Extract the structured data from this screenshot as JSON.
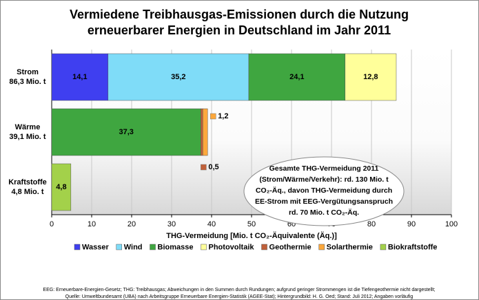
{
  "chart_data": {
    "type": "stacked-bar-horizontal",
    "title_lines": [
      "Vermiedene Treibhausgas-Emissionen durch die Nutzung",
      "erneuerbarer Energien in Deutschland im Jahr 2011"
    ],
    "categories": [
      "Strom",
      "Wärme",
      "Kraftstoffe"
    ],
    "category_sublabels": [
      "86,3 Mio. t",
      "39,1 Mio. t",
      "4,8 Mio. t"
    ],
    "series": [
      {
        "name": "Wasser",
        "color": "#3f3ff0",
        "values": [
          14.1,
          null,
          null
        ],
        "value_labels": [
          "14,1",
          null,
          null
        ]
      },
      {
        "name": "Wind",
        "color": "#7fdcf8",
        "values": [
          35.2,
          null,
          null
        ],
        "value_labels": [
          "35,2",
          null,
          null
        ]
      },
      {
        "name": "Biomasse",
        "color": "#3fa640",
        "values": [
          24.1,
          37.3,
          null
        ],
        "value_labels": [
          "24,1",
          "37,3",
          null
        ]
      },
      {
        "name": "Photovoltaik",
        "color": "#ffff9a",
        "values": [
          12.8,
          null,
          null
        ],
        "value_labels": [
          "12,8",
          null,
          null
        ]
      },
      {
        "name": "Geothermie",
        "color": "#c0603a",
        "values": [
          null,
          0.5,
          null
        ],
        "value_labels": [
          null,
          "0,5",
          null
        ]
      },
      {
        "name": "Solarthermie",
        "color": "#fca83c",
        "values": [
          null,
          1.2,
          null
        ],
        "value_labels": [
          null,
          "1,2",
          null
        ]
      },
      {
        "name": "Biokraftstoffe",
        "color": "#a3d14a",
        "values": [
          null,
          null,
          4.8
        ],
        "value_labels": [
          null,
          null,
          "4,8"
        ]
      }
    ],
    "xlim": [
      0,
      100
    ],
    "xticks": [
      0,
      10,
      20,
      30,
      40,
      50,
      60,
      70,
      80,
      90,
      100
    ],
    "xlabel": "THG-Vermeidung [Mio. t CO₂-Äquivalente (Äq.)]",
    "grid": true,
    "annotation_lines": [
      "Gesamte THG-Vermeidung 2011",
      "(Strom/Wärme/Verkehr): rd. 130 Mio. t",
      "CO₂-Äq., davon THG-Vermeidung durch",
      "EE-Strom mit EEG-Vergütungsanspruch",
      "rd. 70 Mio. t CO₂-Äq."
    ],
    "footnote_lines": [
      "EEG: Erneuerbare-Energien-Gesetz; THG: Treibhausgas; Abweichungen in den Summen durch Rundungen; aufgrund geringer Strommengen ist die Tiefengeothermie nicht dargestellt;",
      "Quelle: Umweltbundesamt (UBA) nach Arbeitsgruppe Erneuerbare Energien-Statistik (AGEE-Stat); Hintergrundbild: H. G. Oed; Stand: Juli 2012; Angaben vorläufig"
    ]
  }
}
